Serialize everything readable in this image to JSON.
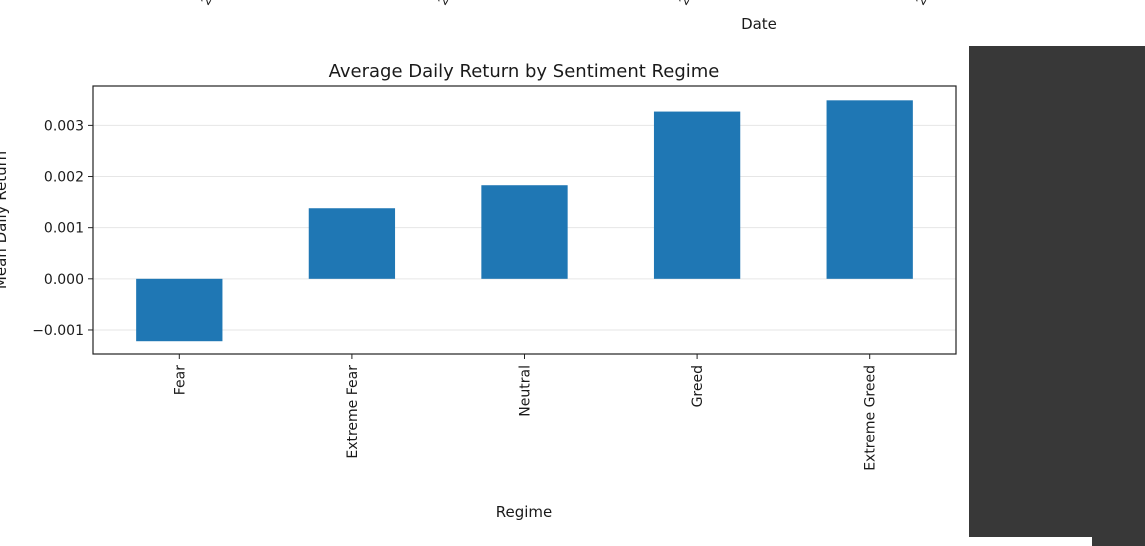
{
  "prev_plot": {
    "xlabel": "Date"
  },
  "chart_data": {
    "type": "bar",
    "title": "Average Daily Return by Sentiment Regime",
    "xlabel": "Regime",
    "ylabel": "Mean Daily Return",
    "categories": [
      "Fear",
      "Extreme Fear",
      "Neutral",
      "Greed",
      "Extreme Greed"
    ],
    "values": [
      -0.00122,
      0.00138,
      0.00183,
      0.00327,
      0.00349
    ],
    "ylim": [
      -0.00147,
      0.00377
    ],
    "yticks": [
      -0.001,
      0.0,
      0.001,
      0.002,
      0.003
    ],
    "ytick_labels": [
      "−0.001",
      "0.000",
      "0.001",
      "0.002",
      "0.003"
    ],
    "grid": "y",
    "bar_color": "#1f77b4"
  },
  "colors": {
    "panel": "#383838",
    "grid": "#e6e6e6"
  }
}
